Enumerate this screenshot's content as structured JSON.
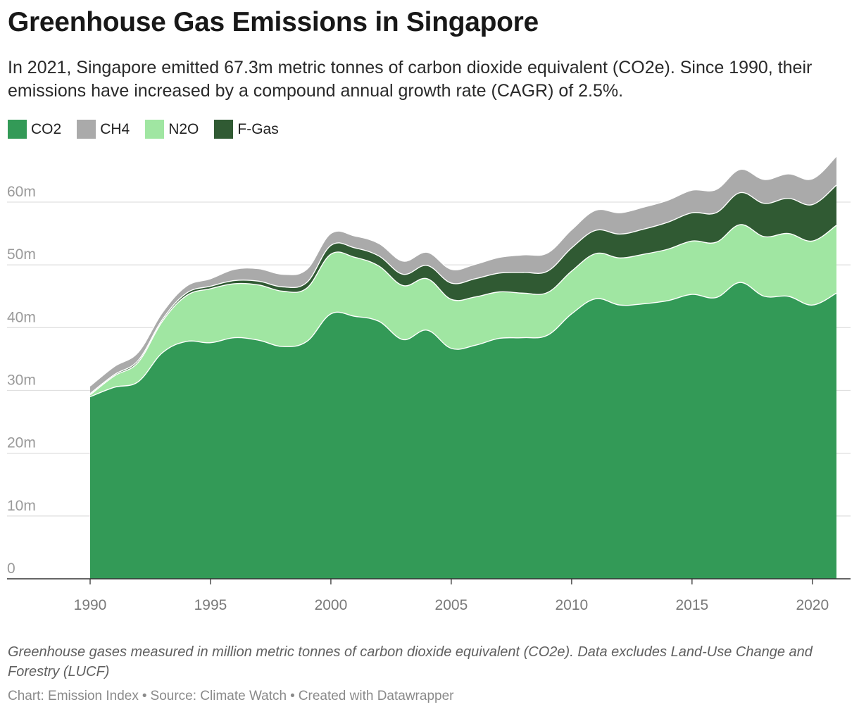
{
  "header": {
    "title": "Greenhouse Gas Emissions in Singapore",
    "subtitle": "In 2021, Singapore emitted 67.3m metric tonnes of carbon dioxide equivalent (CO2e). Since 1990, their emissions have increased by a compound annual growth rate (CAGR) of 2.5%."
  },
  "legend": [
    {
      "label": "CO2",
      "color": "#339a57"
    },
    {
      "label": "CH4",
      "color": "#aaaaaa"
    },
    {
      "label": "N2O",
      "color": "#a0e6a2"
    },
    {
      "label": "F-Gas",
      "color": "#305a33"
    }
  ],
  "chart_data": {
    "type": "area",
    "stacked": true,
    "title": "Greenhouse Gas Emissions in Singapore",
    "x": [
      1990,
      1991,
      1992,
      1993,
      1994,
      1995,
      1996,
      1997,
      1998,
      1999,
      2000,
      2001,
      2002,
      2003,
      2004,
      2005,
      2006,
      2007,
      2008,
      2009,
      2010,
      2011,
      2012,
      2013,
      2014,
      2015,
      2016,
      2017,
      2018,
      2019,
      2020,
      2021
    ],
    "series": [
      {
        "name": "CO2",
        "color": "#339a57",
        "values": [
          29.0,
          30.5,
          31.4,
          36.0,
          37.8,
          37.6,
          38.4,
          38.0,
          37.0,
          37.8,
          42.2,
          41.8,
          41.0,
          38.1,
          39.6,
          36.7,
          37.2,
          38.3,
          38.4,
          38.8,
          42.2,
          44.6,
          43.6,
          43.8,
          44.3,
          45.3,
          44.8,
          47.2,
          45.0,
          45.0,
          43.6,
          45.5
        ]
      },
      {
        "name": "N2O",
        "color": "#a0e6a2",
        "values": [
          0.3,
          1.8,
          3.1,
          5.0,
          7.3,
          8.6,
          8.6,
          8.8,
          8.8,
          8.5,
          9.5,
          9.4,
          8.8,
          8.6,
          8.2,
          7.8,
          7.7,
          7.4,
          7.1,
          6.8,
          6.8,
          7.2,
          7.5,
          7.9,
          8.2,
          8.5,
          8.8,
          9.2,
          9.5,
          10.0,
          10.2,
          10.8
        ]
      },
      {
        "name": "F-Gas",
        "color": "#305a33",
        "values": [
          0.2,
          0.2,
          0.3,
          0.3,
          0.4,
          0.4,
          0.5,
          0.6,
          0.7,
          0.9,
          1.4,
          1.5,
          1.6,
          1.8,
          2.1,
          2.6,
          2.9,
          3.0,
          3.3,
          3.4,
          3.7,
          3.7,
          3.8,
          4.0,
          4.3,
          4.5,
          4.7,
          5.1,
          5.3,
          5.6,
          5.8,
          6.4
        ]
      },
      {
        "name": "CH4",
        "color": "#aaaaaa",
        "values": [
          1.2,
          1.3,
          1.3,
          1.1,
          1.1,
          1.2,
          1.8,
          2.0,
          2.0,
          2.1,
          1.9,
          1.9,
          2.0,
          2.1,
          2.1,
          2.2,
          2.3,
          2.5,
          2.8,
          2.9,
          2.9,
          3.2,
          3.4,
          3.5,
          3.5,
          3.6,
          3.7,
          3.7,
          3.8,
          3.9,
          4.1,
          4.6
        ]
      }
    ],
    "ylim": [
      0,
      67.3
    ],
    "yticks": [
      0,
      10,
      20,
      30,
      40,
      50,
      60
    ],
    "ytick_labels": [
      "0",
      "10m",
      "20m",
      "30m",
      "40m",
      "50m",
      "60m"
    ],
    "xticks": [
      1990,
      1995,
      2000,
      2005,
      2010,
      2015,
      2020
    ],
    "xtick_labels": [
      "1990",
      "1995",
      "2000",
      "2005",
      "2010",
      "2015",
      "2020"
    ],
    "grid": true
  },
  "footer": {
    "note": "Greenhouse gases measured in million metric tonnes of carbon dioxide equivalent (CO2e). Data excludes Land-Use Change and Forestry (LUCF)",
    "chart_credit": "Chart: Emission Index",
    "source": "Source: Climate Watch",
    "created": "Created with Datawrapper",
    "separator": "•"
  }
}
